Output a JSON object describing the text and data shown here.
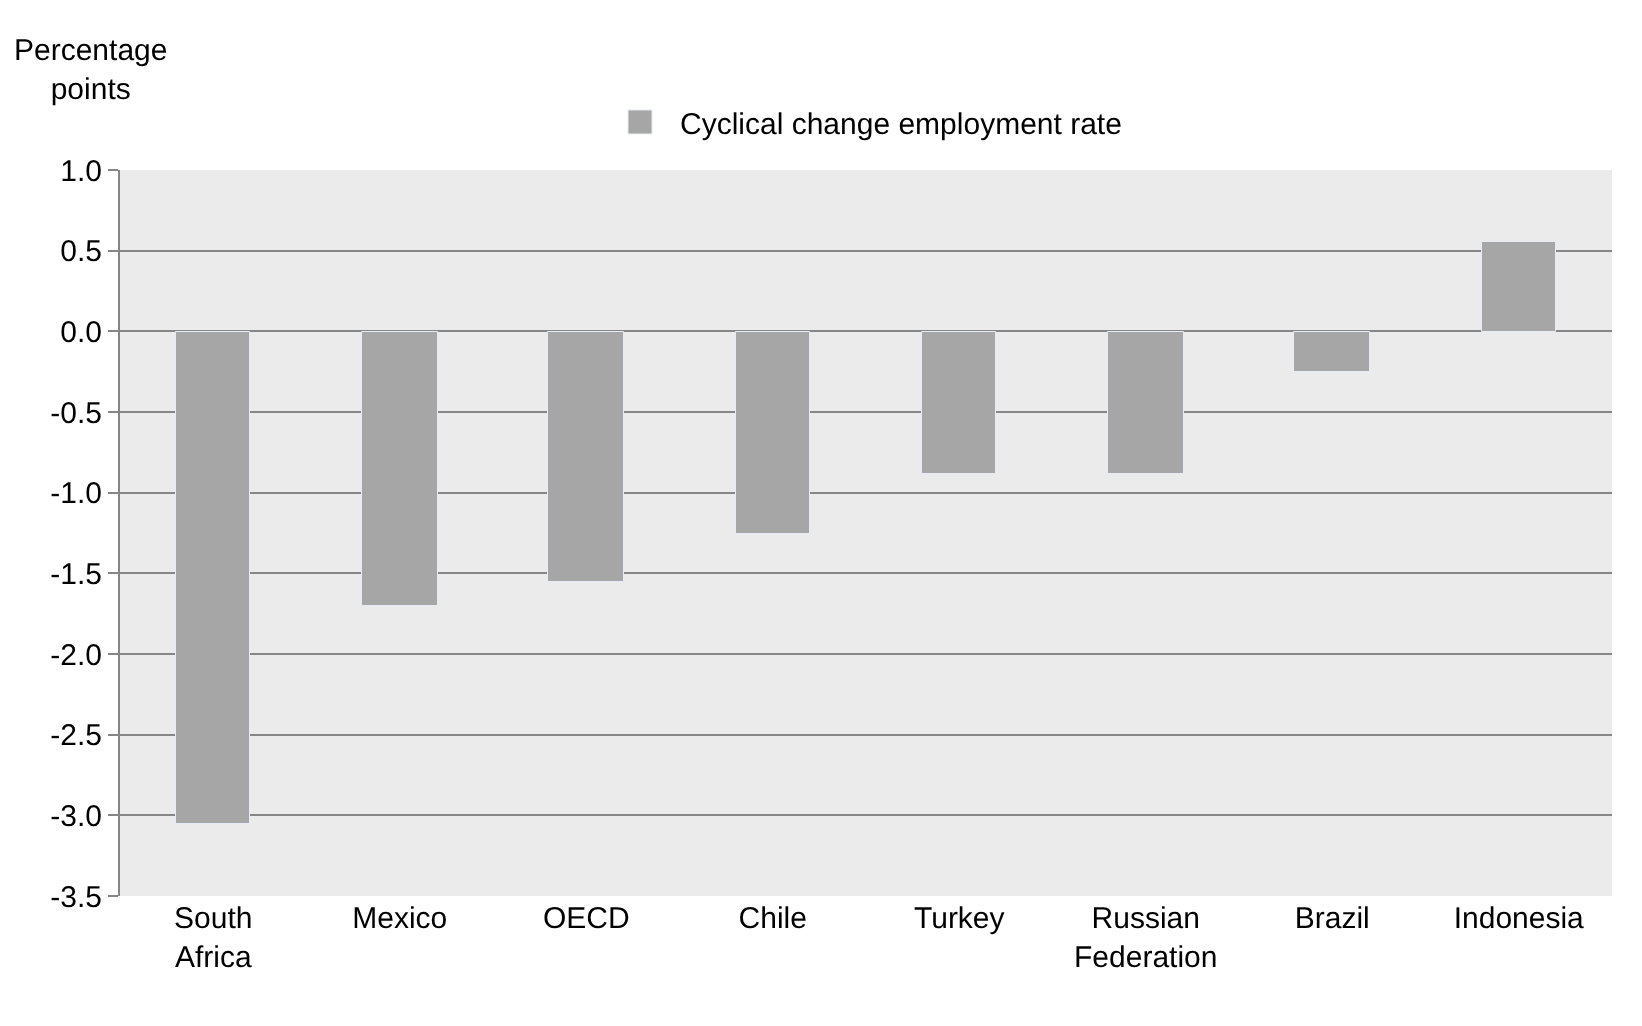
{
  "chart_data": {
    "type": "bar",
    "ylabel": "Percentage points",
    "categories": [
      "South Africa",
      "Mexico",
      "OECD",
      "Chile",
      "Turkey",
      "Russian Federation",
      "Brazil",
      "Indonesia"
    ],
    "series": [
      {
        "name": "Cyclical change employment rate",
        "color": "#a6a6a6",
        "values": [
          -3.05,
          -1.7,
          -1.55,
          -1.25,
          -0.88,
          -0.88,
          -0.25,
          0.55
        ]
      }
    ],
    "ylim": [
      -3.5,
      1.0
    ],
    "yticks": [
      {
        "value": -3.5,
        "label": "-3.5"
      },
      {
        "value": -3.0,
        "label": "-3.0"
      },
      {
        "value": -2.5,
        "label": "-2.5"
      },
      {
        "value": -2.0,
        "label": "-2.0"
      },
      {
        "value": -1.5,
        "label": "-1.5"
      },
      {
        "value": -1.0,
        "label": "-1.0"
      },
      {
        "value": -0.5,
        "label": "-0.5"
      },
      {
        "value": 0,
        "label": "0.0"
      },
      {
        "value": 0.5,
        "label": "0.5"
      },
      {
        "value": 1.0,
        "label": "1.0"
      }
    ],
    "grid": "y",
    "legend": "top"
  }
}
